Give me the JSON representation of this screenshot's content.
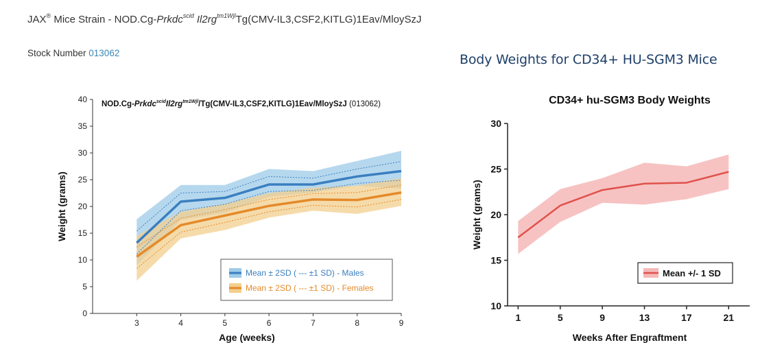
{
  "header": {
    "brand": "JAX",
    "brand_sup": "®",
    "strain_prefix": " Mice Strain - NOD.Cg-",
    "gene1": "Prkdc",
    "gene1_sup": "scid",
    "gene2": " Il2rg",
    "gene2_sup": "tm1Wjl",
    "strain_suffix": "Tg(CMV-IL3,CSF2,KITLG)1Eav/MloySzJ"
  },
  "stock": {
    "label": "Stock Number ",
    "number": "013062"
  },
  "right_heading": "Body Weights for CD34+ HU-SGM3 Mice",
  "colors": {
    "male": "#3a7fc0",
    "male_band": "#9ecbe8",
    "female": "#e48a2a",
    "female_band": "#f3cf8e",
    "red": "#e0514c",
    "red_band": "#f4b9b7"
  },
  "chart_data": [
    {
      "type": "line",
      "title_parts": {
        "a": "NOD.Cg-",
        "b": "Prkdc",
        "b_sup": "scid",
        "c": "Il2rg",
        "c_sup": "tm1Wjl",
        "d": "/Tg(CMV-IL3,CSF2,KITLG)1Eav/MloySzJ",
        "e": " (013062)"
      },
      "xlabel": "Age (weeks)",
      "ylabel": "Weight (grams)",
      "x": [
        3,
        4,
        5,
        6,
        7,
        8,
        9
      ],
      "xlim": [
        2,
        9
      ],
      "ylim": [
        0,
        40
      ],
      "yticks": [
        0,
        5,
        10,
        15,
        20,
        25,
        30,
        35,
        40
      ],
      "series": [
        {
          "name": "Mean ± 2SD ( --- ±1 SD) - Males",
          "mean": [
            13.2,
            20.9,
            21.6,
            24.1,
            24.1,
            25.6,
            26.6
          ],
          "upper2sd": [
            17.6,
            24.0,
            24.0,
            27.0,
            26.6,
            28.5,
            30.4
          ],
          "lower2sd": [
            9.0,
            17.5,
            18.8,
            21.8,
            22.6,
            23.9,
            23.3
          ],
          "upper1sd": [
            15.4,
            22.5,
            22.8,
            25.6,
            25.3,
            27.0,
            28.4
          ],
          "lower1sd": [
            11.1,
            19.2,
            20.4,
            22.8,
            23.0,
            24.3,
            24.9
          ]
        },
        {
          "name": "Mean ± 2SD ( --- ±1 SD) - Females",
          "mean": [
            10.6,
            16.5,
            18.3,
            20.1,
            21.3,
            21.2,
            22.6
          ],
          "upper2sd": [
            14.5,
            19.0,
            20.5,
            22.5,
            23.5,
            23.9,
            25.3
          ],
          "lower2sd": [
            6.1,
            14.0,
            15.6,
            17.9,
            19.2,
            18.6,
            20.1
          ],
          "upper1sd": [
            12.4,
            17.8,
            19.4,
            21.3,
            22.4,
            22.6,
            24.0
          ],
          "lower1sd": [
            8.4,
            15.2,
            17.0,
            19.0,
            20.2,
            19.9,
            21.3
          ]
        }
      ],
      "legend_position": "bottom-right"
    },
    {
      "type": "line",
      "title": "CD34+ hu-SGM3 Body Weights",
      "xlabel": "Weeks After Engraftment",
      "ylabel": "Weight (grams)",
      "x": [
        1,
        5,
        9,
        13,
        17,
        21
      ],
      "xlim": [
        0,
        23
      ],
      "ylim": [
        10,
        30
      ],
      "yticks": [
        10,
        15,
        20,
        25,
        30
      ],
      "series": [
        {
          "name": "Mean +/- 1 SD",
          "mean": [
            17.5,
            21.0,
            22.7,
            23.4,
            23.5,
            24.7
          ],
          "upper": [
            19.3,
            22.8,
            24.0,
            25.7,
            25.3,
            26.6
          ],
          "lower": [
            15.7,
            19.2,
            21.3,
            21.1,
            21.7,
            22.8
          ]
        }
      ],
      "legend_position": "bottom-right"
    }
  ]
}
